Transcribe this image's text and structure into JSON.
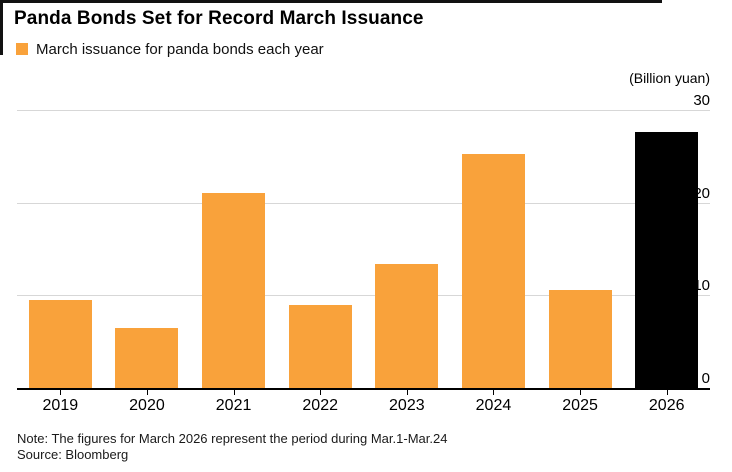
{
  "page": {
    "title": "Panda Bonds Set for Record March Issuance"
  },
  "legend": {
    "label": "March issuance for panda bonds each year",
    "swatch_color": "#F9A23B"
  },
  "unit_label": "(Billion yuan)",
  "chart_data": {
    "type": "bar",
    "title": "Panda Bonds Set for Record March Issuance",
    "categories": [
      "2019",
      "2020",
      "2021",
      "2022",
      "2023",
      "2024",
      "2025",
      "2026"
    ],
    "values": [
      9.5,
      6.5,
      21,
      9,
      13.4,
      25.2,
      10.6,
      27.6
    ],
    "unit": "Billion yuan",
    "ylabel": "(Billion yuan)",
    "ylim": [
      0,
      30
    ],
    "yticks": [
      0,
      10,
      20,
      30
    ],
    "bar_colors": [
      "#F9A23B",
      "#F9A23B",
      "#F9A23B",
      "#F9A23B",
      "#F9A23B",
      "#F9A23B",
      "#F9A23B",
      "#000000"
    ],
    "grid": "horizontal-gridlines",
    "axis_side": "right",
    "legend_position": "top-left",
    "highlighted_category": "2026"
  },
  "footer": {
    "note": "Note: The figures for March 2026 represent the period during Mar.1-Mar.24",
    "source": "Source: Bloomberg"
  },
  "colors": {
    "accent_orange": "#F9A23B",
    "highlight_black": "#000000",
    "gridline": "#D7D7D7",
    "axis": "#000000",
    "text": "#000000"
  }
}
